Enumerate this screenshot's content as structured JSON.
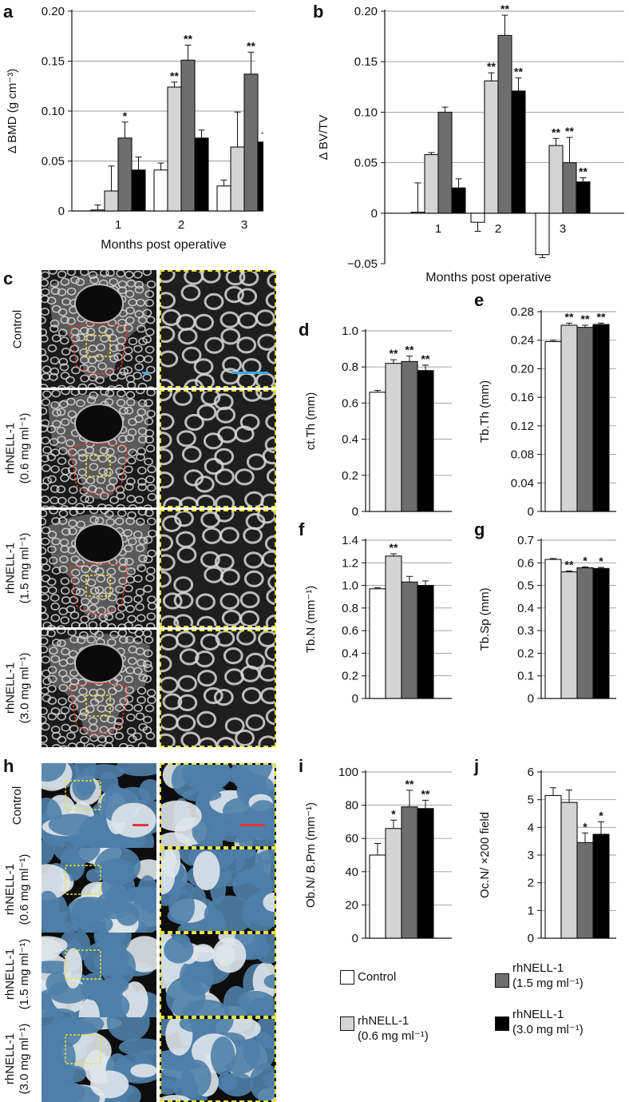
{
  "panels": {
    "a": "a",
    "b": "b",
    "c": "c",
    "d": "d",
    "e": "e",
    "f": "f",
    "g": "g",
    "h": "h",
    "i": "i",
    "j": "j"
  },
  "colors": {
    "control": "#ffffff",
    "rh06": "#d4d4d4",
    "rh15": "#6e6e6e",
    "rh30": "#000000",
    "roi": "#e03a3a",
    "zoom_box": "#e8e23a",
    "ct_scalebar": "#3aa6e0",
    "histo_scalebar": "#e03a3a"
  },
  "micro_rows": {
    "c": [
      {
        "l1": "Control",
        "l2": ""
      },
      {
        "l1": "rhNELL-1",
        "l2": "(0.6 mg ml⁻¹)"
      },
      {
        "l1": "rhNELL-1",
        "l2": "(1.5 mg ml⁻¹)"
      },
      {
        "l1": "rhNELL-1",
        "l2": "(3.0 mg ml⁻¹)"
      }
    ],
    "h": [
      {
        "l1": "Control",
        "l2": ""
      },
      {
        "l1": "rhNELL-1",
        "l2": "(0.6 mg ml⁻¹)"
      },
      {
        "l1": "rhNELL-1",
        "l2": "(1.5 mg ml⁻¹)"
      },
      {
        "l1": "rhNELL-1",
        "l2": "(3.0 mg ml⁻¹)"
      }
    ]
  },
  "legend": [
    {
      "label": "Control",
      "label2": "",
      "color": "#ffffff"
    },
    {
      "label": "rhNELL-1",
      "label2": "(0.6 mg ml⁻¹)",
      "color": "#d4d4d4"
    },
    {
      "label": "rhNELL-1",
      "label2": "(1.5 mg ml⁻¹)",
      "color": "#6e6e6e"
    },
    {
      "label": "rhNELL-1",
      "label2": "(3.0 mg ml⁻¹)",
      "color": "#000000"
    }
  ],
  "chart_data": [
    {
      "id": "a",
      "type": "bar",
      "ylabel": "Δ BMD (g cm⁻³)",
      "xlabel": "Months post operative",
      "categories": [
        "1",
        "2",
        "3"
      ],
      "ylim": [
        0,
        0.2
      ],
      "yticks": [
        0,
        0.05,
        0.1,
        0.15,
        0.2
      ],
      "ytick_labels": [
        "0",
        "0.05",
        "0.10",
        "0.15",
        "0.20"
      ],
      "grid": true,
      "values": [
        [
          0.001,
          0.02,
          0.073,
          0.041
        ],
        [
          0.041,
          0.124,
          0.151,
          0.073
        ],
        [
          0.025,
          0.064,
          0.137,
          0.069
        ]
      ],
      "errors": [
        [
          0.005,
          0.025,
          0.016,
          0.013
        ],
        [
          0.007,
          0.005,
          0.015,
          0.008
        ],
        [
          0.006,
          0.035,
          0.022,
          0.009
        ]
      ],
      "sig": [
        [
          "",
          "",
          "*",
          ""
        ],
        [
          "",
          "**",
          "**",
          ""
        ],
        [
          "",
          "",
          "**",
          ""
        ]
      ]
    },
    {
      "id": "b",
      "type": "bar",
      "ylabel": "Δ BV/TV",
      "xlabel": "Months post operative",
      "categories": [
        "1",
        "2",
        "3"
      ],
      "ylim": [
        -0.05,
        0.2
      ],
      "yticks": [
        -0.05,
        0,
        0.05,
        0.1,
        0.15,
        0.2
      ],
      "ytick_labels": [
        "−0.05",
        "0",
        "0.05",
        "0.10",
        "0.15",
        "0.20"
      ],
      "grid": true,
      "values": [
        [
          0.001,
          0.058,
          0.1,
          0.025
        ],
        [
          -0.009,
          0.131,
          0.176,
          0.121
        ],
        [
          -0.041,
          0.067,
          0.05,
          0.031
        ]
      ],
      "errors": [
        [
          0.029,
          0.002,
          0.005,
          0.009
        ],
        [
          0.009,
          0.008,
          0.02,
          0.013
        ],
        [
          0.003,
          0.007,
          0.025,
          0.004
        ]
      ],
      "sig": [
        [
          "",
          "",
          "",
          ""
        ],
        [
          "",
          "**",
          "**",
          "**"
        ],
        [
          "",
          "**",
          "**",
          "**"
        ]
      ]
    },
    {
      "id": "d",
      "type": "bar",
      "ylabel": "ct.Th (mm)",
      "ylim": [
        0,
        1.0
      ],
      "yticks": [
        0,
        0.2,
        0.4,
        0.6,
        0.8,
        1.0
      ],
      "ytick_labels": [
        "0",
        "0.2",
        "0.4",
        "0.6",
        "0.8",
        "1.0"
      ],
      "grid": true,
      "values": [
        0.66,
        0.82,
        0.83,
        0.78
      ],
      "errors": [
        0.01,
        0.02,
        0.03,
        0.03
      ],
      "sig": [
        "",
        "**",
        "**",
        "**"
      ]
    },
    {
      "id": "e",
      "type": "bar",
      "ylabel": "Tb.Th (mm)",
      "ylim": [
        0,
        0.28
      ],
      "yticks": [
        0,
        0.04,
        0.08,
        0.12,
        0.16,
        0.2,
        0.24,
        0.28
      ],
      "ytick_labels": [
        "0",
        "0.04",
        "0.08",
        "0.12",
        "0.16",
        "0.20",
        "0.24",
        "0.28"
      ],
      "grid": true,
      "values": [
        0.238,
        0.261,
        0.258,
        0.262
      ],
      "errors": [
        0.002,
        0.003,
        0.003,
        0.002
      ],
      "sig": [
        "",
        "**",
        "**",
        "**"
      ]
    },
    {
      "id": "f",
      "type": "bar",
      "ylabel": "Tb.N (mm⁻¹)",
      "ylim": [
        0,
        1.4
      ],
      "yticks": [
        0,
        0.2,
        0.4,
        0.6,
        0.8,
        1.0,
        1.2,
        1.4
      ],
      "ytick_labels": [
        "0",
        "0.2",
        "0.4",
        "0.6",
        "0.8",
        "1.0",
        "1.2",
        "1.4"
      ],
      "grid": true,
      "values": [
        0.97,
        1.26,
        1.03,
        1.0
      ],
      "errors": [
        0.01,
        0.02,
        0.05,
        0.04
      ],
      "sig": [
        "",
        "**",
        "",
        ""
      ]
    },
    {
      "id": "g",
      "type": "bar",
      "ylabel": "Tb.Sp (mm)",
      "ylim": [
        0,
        0.7
      ],
      "yticks": [
        0,
        0.1,
        0.2,
        0.3,
        0.4,
        0.5,
        0.6,
        0.7
      ],
      "ytick_labels": [
        "0",
        "0.1",
        "0.2",
        "0.3",
        "0.4",
        "0.5",
        "0.6",
        "0.7"
      ],
      "grid": true,
      "values": [
        0.615,
        0.56,
        0.578,
        0.575
      ],
      "errors": [
        0.004,
        0.004,
        0.004,
        0.005
      ],
      "sig": [
        "",
        "**",
        "*",
        "*"
      ]
    },
    {
      "id": "i",
      "type": "bar",
      "ylabel": "Ob.N/ B.Pm (mm⁻¹)",
      "ylim": [
        0,
        100
      ],
      "yticks": [
        0,
        20,
        40,
        60,
        80,
        100
      ],
      "ytick_labels": [
        "0",
        "20",
        "40",
        "60",
        "80",
        "100"
      ],
      "grid": true,
      "values": [
        50,
        66,
        79,
        78
      ],
      "errors": [
        7,
        5,
        10,
        5
      ],
      "sig": [
        "",
        "*",
        "**",
        "**"
      ]
    },
    {
      "id": "j",
      "type": "bar",
      "ylabel": "Oc.N/ ×200 field",
      "ylim": [
        0,
        6
      ],
      "yticks": [
        0,
        1,
        2,
        3,
        4,
        5,
        6
      ],
      "ytick_labels": [
        "0",
        "1",
        "2",
        "3",
        "4",
        "5",
        "6"
      ],
      "grid": true,
      "values": [
        5.15,
        4.9,
        3.45,
        3.75
      ],
      "errors": [
        0.28,
        0.45,
        0.35,
        0.45
      ],
      "sig": [
        "",
        "",
        "*",
        "*"
      ]
    }
  ]
}
